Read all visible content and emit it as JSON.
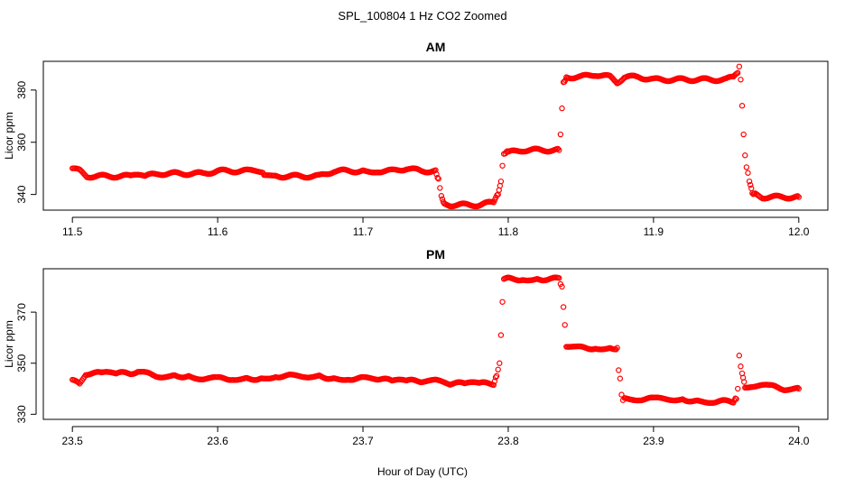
{
  "figure": {
    "title": "SPL_100804  1 Hz CO2 Zoomed",
    "xlabel": "Hour of Day (UTC)"
  },
  "colors": {
    "points": "#ff0000",
    "axes": "#000000"
  },
  "chart_data": [
    {
      "type": "scatter",
      "title": "AM",
      "xlabel": "Hour of Day (UTC)",
      "ylabel": "Licor ppm",
      "xlim": [
        11.5,
        12.0
      ],
      "ylim": [
        334,
        391
      ],
      "xticks": [
        11.5,
        11.6,
        11.7,
        11.8,
        11.9,
        12.0
      ],
      "xtick_labels": [
        "11.5",
        "11.6",
        "11.7",
        "11.8",
        "11.9",
        "12.0"
      ],
      "yticks": [
        340,
        360,
        380
      ],
      "ytick_labels": [
        "340",
        "360",
        "380"
      ],
      "grid": false,
      "marker": "open-circle",
      "series": [
        {
          "x": [
            11.5,
            11.505,
            11.51,
            11.52,
            11.53,
            11.54,
            11.55,
            11.56,
            11.57,
            11.58,
            11.59,
            11.6,
            11.61,
            11.62,
            11.63,
            11.632,
            11.64,
            11.65,
            11.66,
            11.67,
            11.675,
            11.68,
            11.69,
            11.7,
            11.71,
            11.72,
            11.73,
            11.74,
            11.75,
            11.752,
            11.754,
            11.756,
            11.76,
            11.77,
            11.78,
            11.79,
            11.793,
            11.795,
            11.796,
            11.797,
            11.798,
            11.8,
            11.81,
            11.82,
            11.83,
            11.835,
            11.836,
            11.837,
            11.838,
            11.84,
            11.85,
            11.86,
            11.87,
            11.875,
            11.88,
            11.89,
            11.9,
            11.91,
            11.92,
            11.93,
            11.94,
            11.95,
            11.955,
            11.958,
            11.959,
            11.96,
            11.961,
            11.962,
            11.963,
            11.964,
            11.965,
            11.966,
            11.968,
            11.97,
            11.975,
            11.98,
            11.99,
            12.0
          ],
          "y": [
            350,
            349,
            347,
            347,
            347,
            347,
            347,
            348,
            348,
            348,
            348,
            349,
            349,
            349,
            349,
            347,
            347,
            347,
            347,
            347,
            348,
            349,
            349,
            349,
            349,
            349,
            350,
            349,
            349,
            346,
            339,
            337,
            336,
            336,
            336,
            337,
            340,
            345,
            351,
            355,
            356,
            356,
            357,
            357,
            357,
            357,
            363,
            373,
            383,
            385,
            385,
            386,
            385,
            383,
            385,
            385,
            384,
            384,
            384,
            384,
            384,
            384,
            385,
            386,
            389,
            384,
            374,
            363,
            355,
            351,
            348,
            345,
            341,
            340,
            339,
            339,
            339,
            339
          ]
        }
      ]
    },
    {
      "type": "scatter",
      "title": "PM",
      "xlabel": "Hour of Day (UTC)",
      "ylabel": "Licor ppm",
      "xlim": [
        23.5,
        24.0
      ],
      "ylim": [
        328,
        387
      ],
      "xticks": [
        23.5,
        23.6,
        23.7,
        23.8,
        23.9,
        24.0
      ],
      "xtick_labels": [
        "23.5",
        "23.6",
        "23.7",
        "23.8",
        "23.9",
        "24.0"
      ],
      "yticks": [
        330,
        350,
        370
      ],
      "ytick_labels": [
        "330",
        "350",
        "370"
      ],
      "grid": false,
      "marker": "open-circle",
      "series": [
        {
          "x": [
            23.5,
            23.505,
            23.51,
            23.52,
            23.53,
            23.54,
            23.545,
            23.55,
            23.56,
            23.57,
            23.58,
            23.59,
            23.6,
            23.61,
            23.62,
            23.63,
            23.64,
            23.65,
            23.66,
            23.67,
            23.68,
            23.69,
            23.7,
            23.71,
            23.72,
            23.73,
            23.74,
            23.75,
            23.76,
            23.77,
            23.78,
            23.79,
            23.792,
            23.794,
            23.795,
            23.796,
            23.797,
            23.8,
            23.81,
            23.82,
            23.83,
            23.835,
            23.837,
            23.838,
            23.839,
            23.84,
            23.85,
            23.86,
            23.87,
            23.875,
            23.876,
            23.877,
            23.878,
            23.879,
            23.88,
            23.89,
            23.9,
            23.91,
            23.92,
            23.93,
            23.94,
            23.95,
            23.955,
            23.957,
            23.958,
            23.959,
            23.96,
            23.961,
            23.963,
            23.97,
            23.98,
            23.99,
            24.0
          ],
          "y": [
            343,
            342,
            346,
            346,
            346,
            346,
            347,
            346,
            345,
            345,
            345,
            344,
            344,
            344,
            344,
            344,
            345,
            345,
            345,
            345,
            344,
            344,
            344,
            344,
            343,
            343,
            343,
            343,
            342,
            342,
            342,
            342,
            345,
            350,
            361,
            374,
            383,
            383,
            383,
            383,
            383,
            383,
            380,
            372,
            365,
            357,
            356,
            356,
            356,
            356,
            347,
            344,
            338,
            336,
            336,
            336,
            336,
            336,
            336,
            335,
            335,
            335,
            335,
            336,
            340,
            353,
            349,
            346,
            341,
            341,
            341,
            340,
            340
          ]
        }
      ]
    }
  ]
}
